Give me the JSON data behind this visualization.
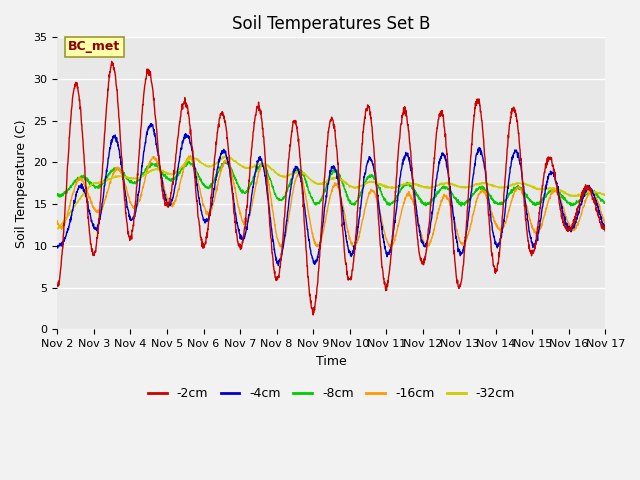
{
  "title": "Soil Temperatures Set B",
  "xlabel": "Time",
  "ylabel": "Soil Temperature (C)",
  "annotation": "BC_met",
  "ylim": [
    0,
    35
  ],
  "xlim": [
    0,
    15
  ],
  "x_tick_labels": [
    "Nov 2",
    "Nov 3",
    "Nov 4",
    "Nov 5",
    "Nov 6",
    "Nov 7",
    "Nov 8",
    "Nov 9",
    "Nov 10",
    "Nov 11",
    "Nov 12",
    "Nov 13",
    "Nov 14",
    "Nov 15",
    "Nov 16",
    "Nov 17"
  ],
  "series_labels": [
    "-2cm",
    "-4cm",
    "-8cm",
    "-16cm",
    "-32cm"
  ],
  "series_colors": [
    "#cc0000",
    "#0000cc",
    "#00cc00",
    "#ff9900",
    "#cccc00"
  ],
  "fig_bg": "#f2f2f2",
  "plot_bg": "#e8e8e8",
  "grid_color": "#ffffff",
  "title_fontsize": 12,
  "label_fontsize": 9,
  "tick_fontsize": 8,
  "yticks": [
    0,
    5,
    10,
    15,
    20,
    25,
    30,
    35
  ]
}
